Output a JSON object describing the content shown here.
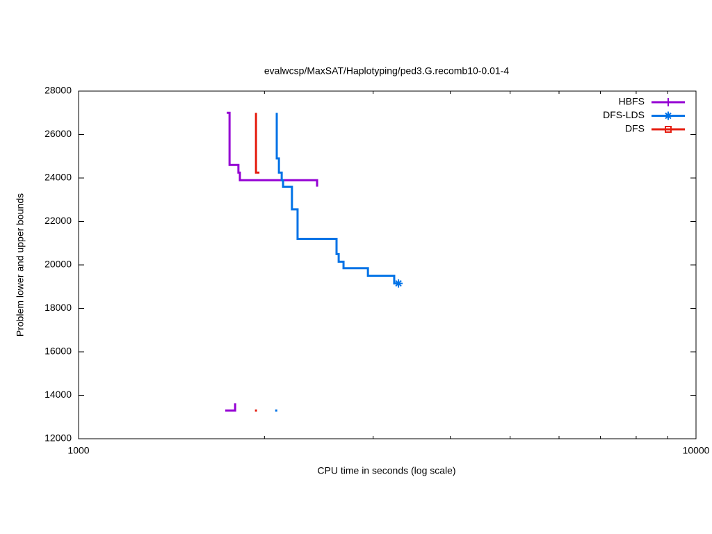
{
  "chart_data": {
    "type": "line",
    "title": "evalwcsp/MaxSAT/Haplotyping/ped3.G.recomb10-0.01-4",
    "xlabel": "CPU time in seconds (log scale)",
    "ylabel": "Problem lower and upper bounds",
    "xscale": "log",
    "xlim": [
      1000,
      10000
    ],
    "xticks": [
      1000,
      10000
    ],
    "x_minor_ticks": [
      2000,
      3000,
      4000,
      5000,
      6000,
      7000,
      8000,
      9000
    ],
    "ylim": [
      12000,
      28000
    ],
    "yticks": [
      12000,
      14000,
      16000,
      18000,
      20000,
      22000,
      24000,
      26000,
      28000
    ],
    "grid": false,
    "legend": "top-right",
    "series": [
      {
        "name": "HBFS",
        "color": "#9400d3",
        "marker": "plus",
        "x": [
          1738,
          1756,
          1756,
          1815,
          1815,
          1825,
          1825,
          2434,
          2434
        ],
        "values": [
          27000,
          27000,
          24600,
          24600,
          24250,
          24250,
          23900,
          23900,
          23600
        ],
        "lower_x": [
          1728,
          1793,
          1793
        ],
        "lower_values": [
          13300,
          13300,
          13630
        ]
      },
      {
        "name": "DFS-LDS",
        "color": "#0072e6",
        "marker": "star",
        "end_marker": true,
        "x": [
          2094,
          2094,
          2111,
          2111,
          2133,
          2133,
          2144,
          2144,
          2216,
          2216,
          2263,
          2263,
          2617,
          2617,
          2638,
          2638,
          2686,
          2686,
          2942,
          2942,
          3245,
          3245,
          3297
        ],
        "values": [
          27000,
          24900,
          24900,
          24250,
          24250,
          23900,
          23900,
          23600,
          23600,
          22560,
          22560,
          21200,
          21200,
          20500,
          20500,
          20150,
          20150,
          19850,
          19850,
          19500,
          19500,
          19150,
          19150
        ],
        "lower_x": [
          2090
        ],
        "lower_values": [
          13300
        ]
      },
      {
        "name": "DFS",
        "color": "#e51e10",
        "marker": "square",
        "x": [
          1938,
          1938,
          1963
        ],
        "values": [
          27000,
          24250,
          24250
        ],
        "lower_x": [
          1938
        ],
        "lower_values": [
          13300
        ]
      }
    ]
  }
}
